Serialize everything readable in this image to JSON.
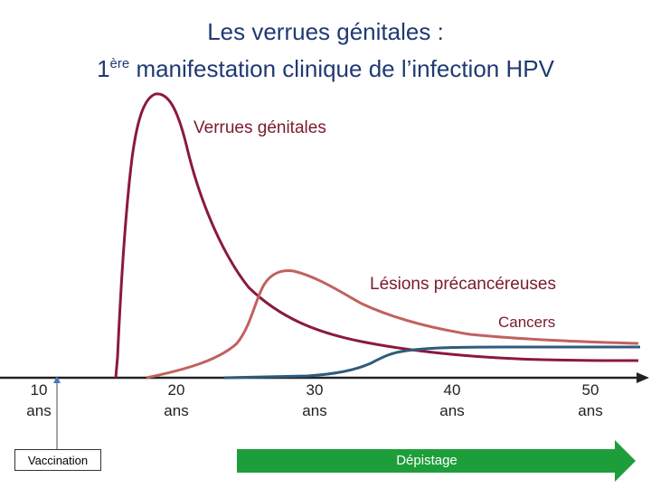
{
  "title": {
    "line1": "Les verrues génitales :",
    "line2_prefix": "1",
    "line2_sup": "ère",
    "line2_rest": " manifestation clinique de l’infection HPV"
  },
  "curves": {
    "warts": {
      "label": "Verrues génitales",
      "color": "#8b1a3a"
    },
    "precancer": {
      "label": "Lésions précancéreuses",
      "color": "#c0625f"
    },
    "cancer": {
      "label": "Cancers",
      "color": "#2f5b7c"
    }
  },
  "axis": {
    "ticks": [
      {
        "line1": "10",
        "line2": "ans"
      },
      {
        "line1": "20",
        "line2": "ans"
      },
      {
        "line1": "30",
        "line2": "ans"
      },
      {
        "line1": "40",
        "line2": "ans"
      },
      {
        "line1": "50",
        "line2": "ans"
      }
    ]
  },
  "vaccination": {
    "label": "Vaccination"
  },
  "screening": {
    "label": "Dépistage",
    "color": "#1e9e3a"
  }
}
